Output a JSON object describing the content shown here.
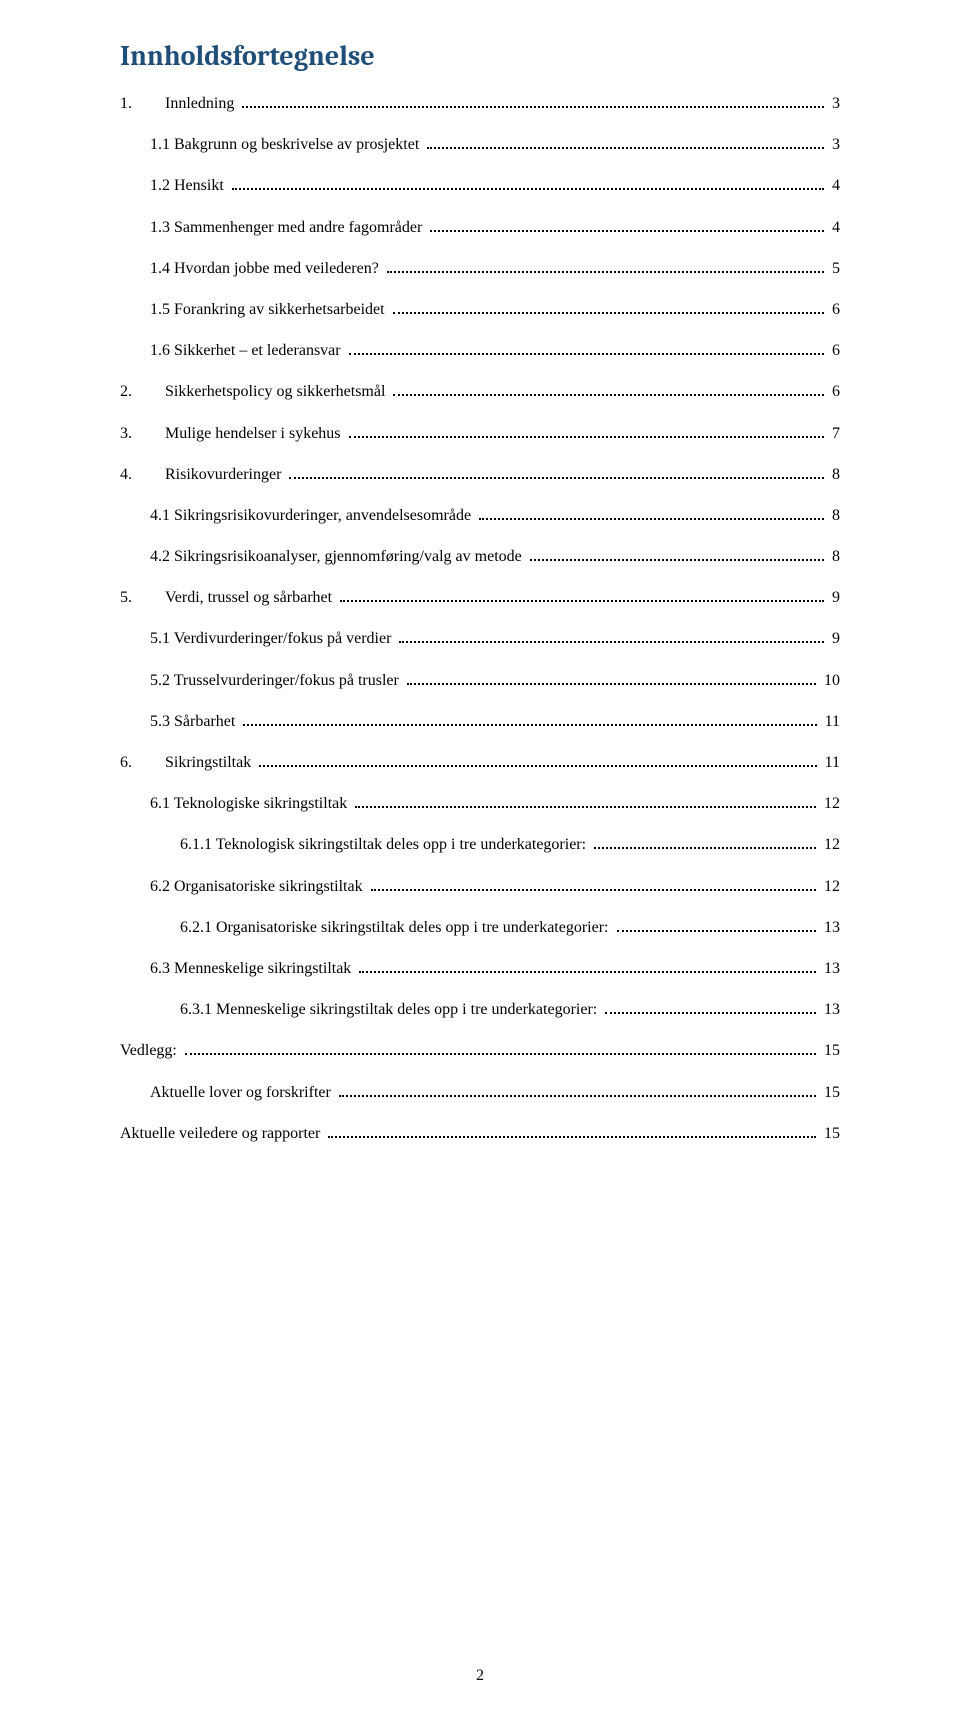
{
  "title": "Innholdsfortegnelse",
  "title_color": "#1f4e79",
  "text_color": "#000000",
  "background_color": "#ffffff",
  "font_family_body": "Times New Roman",
  "title_fontsize": 28,
  "body_fontsize": 16,
  "page_number": "2",
  "entries": [
    {
      "level": 1,
      "tab": true,
      "num": "1.",
      "label": "Innledning",
      "page": "3"
    },
    {
      "level": 2,
      "tab": false,
      "num": "",
      "label": "1.1 Bakgrunn og beskrivelse av prosjektet",
      "page": "3"
    },
    {
      "level": 2,
      "tab": false,
      "num": "",
      "label": "1.2 Hensikt",
      "page": "4"
    },
    {
      "level": 2,
      "tab": false,
      "num": "",
      "label": "1.3 Sammenhenger med andre fagområder",
      "page": "4"
    },
    {
      "level": 2,
      "tab": false,
      "num": "",
      "label": "1.4 Hvordan jobbe med veilederen?",
      "page": "5"
    },
    {
      "level": 2,
      "tab": false,
      "num": "",
      "label": "1.5 Forankring av sikkerhetsarbeidet",
      "page": "6"
    },
    {
      "level": 2,
      "tab": false,
      "num": "",
      "label": "1.6 Sikkerhet – et lederansvar",
      "page": "6"
    },
    {
      "level": 1,
      "tab": true,
      "num": "2.",
      "label": "Sikkerhetspolicy og sikkerhetsmål",
      "page": "6"
    },
    {
      "level": 1,
      "tab": true,
      "num": "3.",
      "label": "Mulige hendelser i sykehus",
      "page": "7"
    },
    {
      "level": 1,
      "tab": true,
      "num": "4.",
      "label": "Risikovurderinger",
      "page": "8"
    },
    {
      "level": 2,
      "tab": false,
      "num": "",
      "label": "4.1 Sikringsrisikovurderinger, anvendelsesområde",
      "page": "8"
    },
    {
      "level": 2,
      "tab": false,
      "num": "",
      "label": "4.2 Sikringsrisikoanalyser, gjennomføring/valg av metode",
      "page": "8"
    },
    {
      "level": 1,
      "tab": true,
      "num": "5.",
      "label": "Verdi, trussel og sårbarhet",
      "page": "9"
    },
    {
      "level": 2,
      "tab": false,
      "num": "",
      "label": "5.1 Verdivurderinger/fokus på verdier",
      "page": "9"
    },
    {
      "level": 2,
      "tab": false,
      "num": "",
      "label": "5.2 Trusselvurderinger/fokus på trusler",
      "page": "10"
    },
    {
      "level": 2,
      "tab": false,
      "num": "",
      "label": "5.3 Sårbarhet",
      "page": "11"
    },
    {
      "level": 1,
      "tab": true,
      "num": "6.",
      "label": "Sikringstiltak",
      "page": "11"
    },
    {
      "level": 2,
      "tab": false,
      "num": "",
      "label": "6.1 Teknologiske sikringstiltak",
      "page": "12"
    },
    {
      "level": 3,
      "tab": false,
      "num": "",
      "label": "6.1.1 Teknologisk sikringstiltak deles opp i tre underkategorier:",
      "page": "12"
    },
    {
      "level": 2,
      "tab": false,
      "num": "",
      "label": "6.2 Organisatoriske sikringstiltak",
      "page": "12"
    },
    {
      "level": 3,
      "tab": false,
      "num": "",
      "label": "6.2.1 Organisatoriske sikringstiltak deles opp i tre underkategorier:",
      "page": "13"
    },
    {
      "level": 2,
      "tab": false,
      "num": "",
      "label": "6.3 Menneskelige sikringstiltak",
      "page": "13"
    },
    {
      "level": 3,
      "tab": false,
      "num": "",
      "label": "6.3.1 Menneskelige sikringstiltak deles opp i tre underkategorier:",
      "page": "13"
    },
    {
      "level": 1,
      "tab": false,
      "num": "",
      "label": "Vedlegg:",
      "page": "15"
    },
    {
      "level": 2,
      "tab": false,
      "num": "",
      "label": "Aktuelle lover og forskrifter",
      "page": "15"
    },
    {
      "level": 1,
      "tab": false,
      "num": "",
      "label": "Aktuelle veiledere og rapporter",
      "page": "15"
    }
  ]
}
